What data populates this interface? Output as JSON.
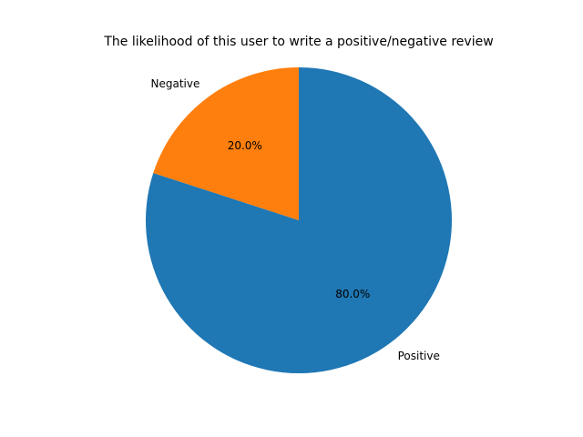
{
  "chart_data": {
    "type": "pie",
    "title": "The likelihood of this user to write a positive/negative review",
    "start_angle_deg": 90,
    "direction": "counterclockwise",
    "slices": [
      {
        "label": "Negative",
        "value": 20.0,
        "pct_label": "20.0%",
        "color": "#ff7f0e"
      },
      {
        "label": "Positive",
        "value": 80.0,
        "pct_label": "80.0%",
        "color": "#1f77b4"
      }
    ]
  }
}
